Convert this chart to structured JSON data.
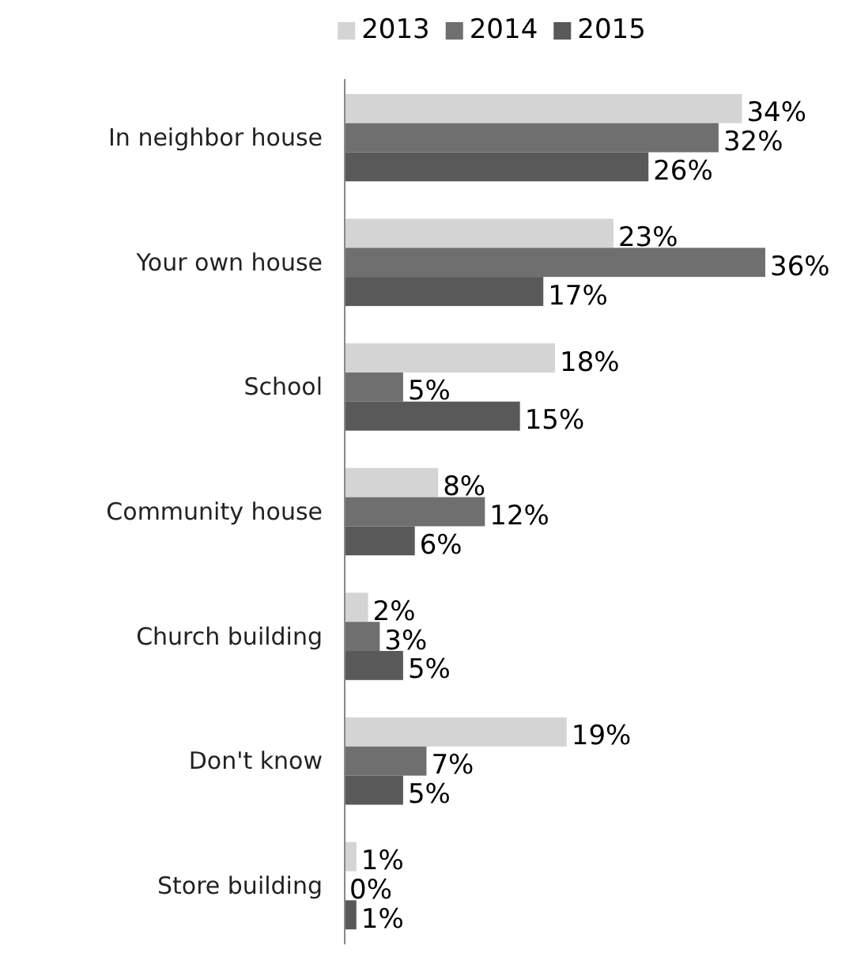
{
  "chart_data": {
    "type": "bar",
    "orientation": "horizontal",
    "categories": [
      "In neighbor house",
      "Your own house",
      "School",
      "Community house",
      "Church building",
      "Don't know",
      "Store building"
    ],
    "series": [
      {
        "name": "2013",
        "color": "#d4d4d4",
        "values": [
          34,
          23,
          18,
          8,
          2,
          19,
          1
        ],
        "value_labels": [
          "34%",
          "23%",
          "18%",
          "8%",
          "2%",
          "19%",
          "1%"
        ]
      },
      {
        "name": "2014",
        "color": "#6f6f6f",
        "values": [
          32,
          36,
          5,
          12,
          3,
          7,
          0
        ],
        "value_labels": [
          "32%",
          "36%",
          "5%",
          "12%",
          "3%",
          "7%",
          "0%"
        ]
      },
      {
        "name": "2015",
        "color": "#595959",
        "values": [
          26,
          17,
          15,
          6,
          5,
          5,
          1
        ],
        "value_labels": [
          "26%",
          "17%",
          "15%",
          "6%",
          "5%",
          "5%",
          "1%"
        ]
      }
    ],
    "legend": "top",
    "tick_labels": "y"
  }
}
